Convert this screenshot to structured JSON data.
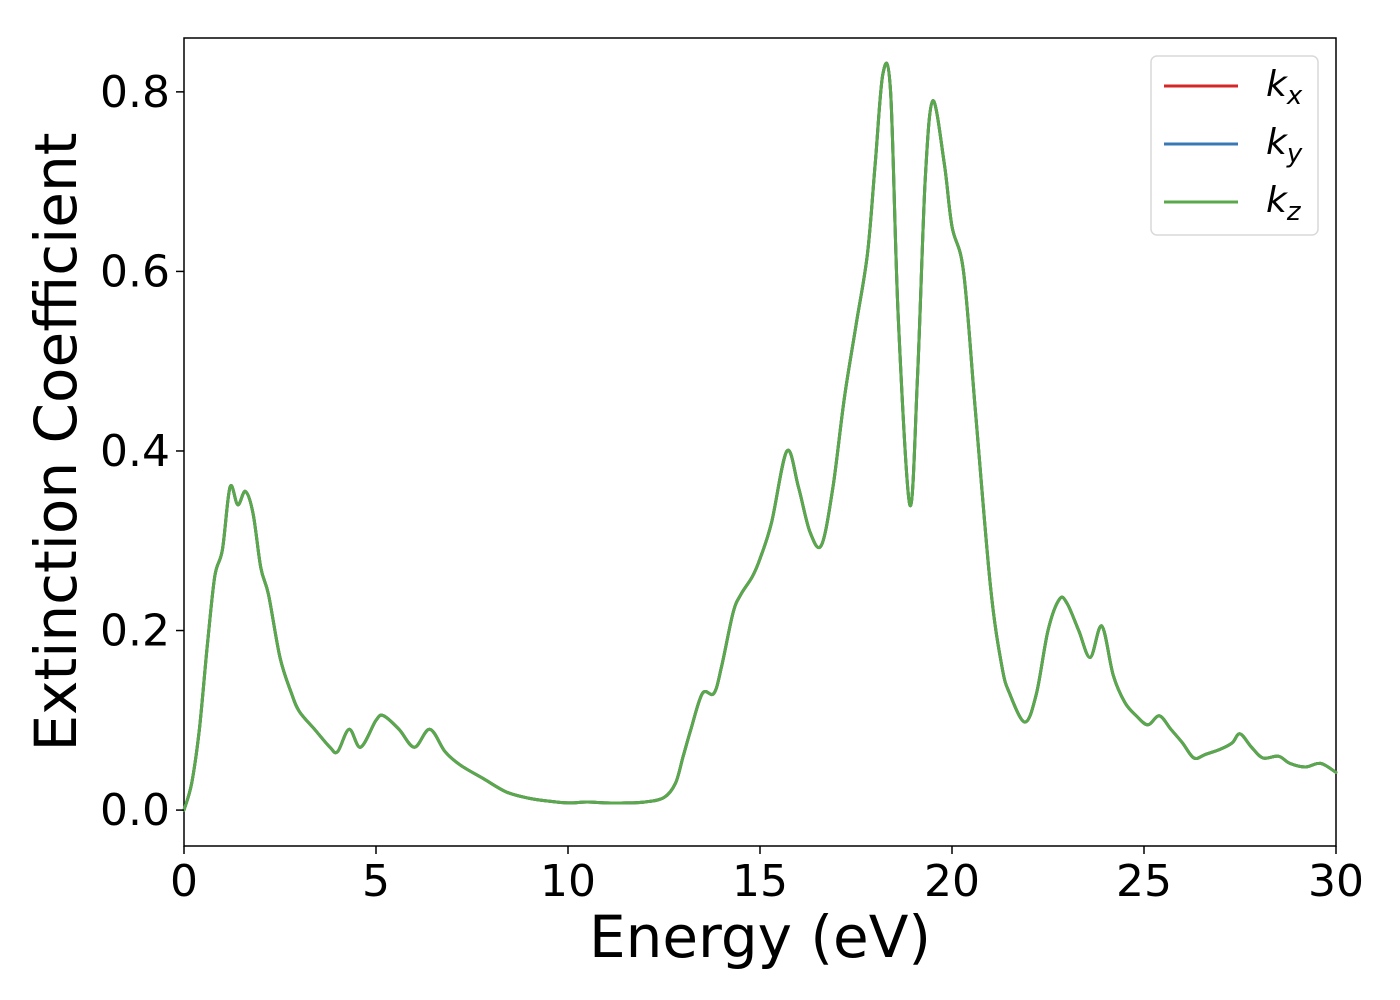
{
  "chart_data": {
    "type": "line",
    "xlabel": "Energy (eV)",
    "ylabel": "Extinction Coefficient",
    "xlim": [
      0,
      30
    ],
    "ylim": [
      -0.04,
      0.86
    ],
    "xticks": [
      0,
      5,
      10,
      15,
      20,
      25,
      30
    ],
    "xtick_labels": [
      "0",
      "5",
      "10",
      "15",
      "20",
      "25",
      "30"
    ],
    "yticks": [
      0.0,
      0.2,
      0.4,
      0.6,
      0.8
    ],
    "ytick_labels": [
      "0.0",
      "0.2",
      "0.4",
      "0.6",
      "0.8"
    ],
    "grid": false,
    "legend": {
      "placement": "top-right"
    },
    "series_colors": [
      "#d62728",
      "#3a78b5",
      "#59a84b"
    ],
    "series": [
      {
        "name": "k",
        "subscript": "x",
        "color": "#d62728"
      },
      {
        "name": "k",
        "subscript": "y",
        "color": "#3a78b5"
      },
      {
        "name": "k",
        "subscript": "z",
        "color": "#59a84b"
      }
    ],
    "x": [
      0,
      0.2,
      0.4,
      0.6,
      0.8,
      1.0,
      1.2,
      1.4,
      1.6,
      1.8,
      2.0,
      2.2,
      2.5,
      2.8,
      3.0,
      3.4,
      3.8,
      4.0,
      4.3,
      4.6,
      5.0,
      5.2,
      5.6,
      6.0,
      6.4,
      6.8,
      7.2,
      7.8,
      8.4,
      9.0,
      9.5,
      10.0,
      10.5,
      11.0,
      11.5,
      12.0,
      12.5,
      12.8,
      13.0,
      13.2,
      13.5,
      13.8,
      14.0,
      14.3,
      14.5,
      14.8,
      15.0,
      15.3,
      15.7,
      16.0,
      16.3,
      16.6,
      16.9,
      17.2,
      17.5,
      17.8,
      18.0,
      18.2,
      18.4,
      18.6,
      18.9,
      19.1,
      19.3,
      19.5,
      19.8,
      20.0,
      20.3,
      20.6,
      21.0,
      21.3,
      21.5,
      21.9,
      22.2,
      22.5,
      22.8,
      23.0,
      23.3,
      23.6,
      23.9,
      24.2,
      24.5,
      24.8,
      25.1,
      25.4,
      25.7,
      26.0,
      26.3,
      26.6,
      27.0,
      27.3,
      27.5,
      27.8,
      28.1,
      28.5,
      28.8,
      29.2,
      29.6,
      30.0
    ],
    "y_series": [
      [
        0.0,
        0.03,
        0.09,
        0.18,
        0.26,
        0.29,
        0.36,
        0.34,
        0.355,
        0.33,
        0.27,
        0.24,
        0.17,
        0.13,
        0.11,
        0.09,
        0.07,
        0.065,
        0.09,
        0.07,
        0.1,
        0.105,
        0.09,
        0.07,
        0.09,
        0.065,
        0.05,
        0.035,
        0.02,
        0.013,
        0.01,
        0.008,
        0.009,
        0.008,
        0.008,
        0.009,
        0.014,
        0.03,
        0.06,
        0.09,
        0.13,
        0.13,
        0.16,
        0.22,
        0.24,
        0.26,
        0.28,
        0.32,
        0.4,
        0.36,
        0.31,
        0.295,
        0.36,
        0.46,
        0.54,
        0.62,
        0.72,
        0.82,
        0.8,
        0.55,
        0.34,
        0.48,
        0.7,
        0.79,
        0.72,
        0.65,
        0.6,
        0.45,
        0.25,
        0.16,
        0.13,
        0.098,
        0.13,
        0.2,
        0.235,
        0.23,
        0.2,
        0.17,
        0.205,
        0.15,
        0.12,
        0.105,
        0.095,
        0.105,
        0.09,
        0.075,
        0.058,
        0.062,
        0.068,
        0.075,
        0.085,
        0.07,
        0.058,
        0.06,
        0.052,
        0.048,
        0.052,
        0.042
      ],
      [
        0.0,
        0.03,
        0.09,
        0.18,
        0.26,
        0.29,
        0.36,
        0.34,
        0.355,
        0.33,
        0.27,
        0.24,
        0.17,
        0.13,
        0.11,
        0.09,
        0.07,
        0.065,
        0.09,
        0.07,
        0.1,
        0.105,
        0.09,
        0.07,
        0.09,
        0.065,
        0.05,
        0.035,
        0.02,
        0.013,
        0.01,
        0.008,
        0.009,
        0.008,
        0.008,
        0.009,
        0.014,
        0.03,
        0.06,
        0.09,
        0.13,
        0.13,
        0.16,
        0.22,
        0.24,
        0.26,
        0.28,
        0.32,
        0.4,
        0.36,
        0.31,
        0.295,
        0.36,
        0.46,
        0.54,
        0.62,
        0.72,
        0.82,
        0.8,
        0.55,
        0.34,
        0.48,
        0.7,
        0.79,
        0.72,
        0.65,
        0.6,
        0.45,
        0.25,
        0.16,
        0.13,
        0.098,
        0.13,
        0.2,
        0.235,
        0.23,
        0.2,
        0.17,
        0.205,
        0.15,
        0.12,
        0.105,
        0.095,
        0.105,
        0.09,
        0.075,
        0.058,
        0.062,
        0.068,
        0.075,
        0.085,
        0.07,
        0.058,
        0.06,
        0.052,
        0.048,
        0.052,
        0.042
      ],
      [
        0.0,
        0.03,
        0.09,
        0.18,
        0.26,
        0.29,
        0.36,
        0.34,
        0.355,
        0.33,
        0.27,
        0.24,
        0.17,
        0.13,
        0.11,
        0.09,
        0.07,
        0.065,
        0.09,
        0.07,
        0.1,
        0.105,
        0.09,
        0.07,
        0.09,
        0.065,
        0.05,
        0.035,
        0.02,
        0.013,
        0.01,
        0.008,
        0.009,
        0.008,
        0.008,
        0.009,
        0.014,
        0.03,
        0.06,
        0.09,
        0.13,
        0.13,
        0.16,
        0.22,
        0.24,
        0.26,
        0.28,
        0.32,
        0.4,
        0.36,
        0.31,
        0.295,
        0.36,
        0.46,
        0.54,
        0.62,
        0.72,
        0.82,
        0.8,
        0.55,
        0.34,
        0.48,
        0.7,
        0.79,
        0.72,
        0.65,
        0.6,
        0.45,
        0.25,
        0.16,
        0.13,
        0.098,
        0.13,
        0.2,
        0.235,
        0.23,
        0.2,
        0.17,
        0.205,
        0.15,
        0.12,
        0.105,
        0.095,
        0.105,
        0.09,
        0.075,
        0.058,
        0.062,
        0.068,
        0.075,
        0.085,
        0.07,
        0.058,
        0.06,
        0.052,
        0.048,
        0.052,
        0.042
      ]
    ]
  }
}
